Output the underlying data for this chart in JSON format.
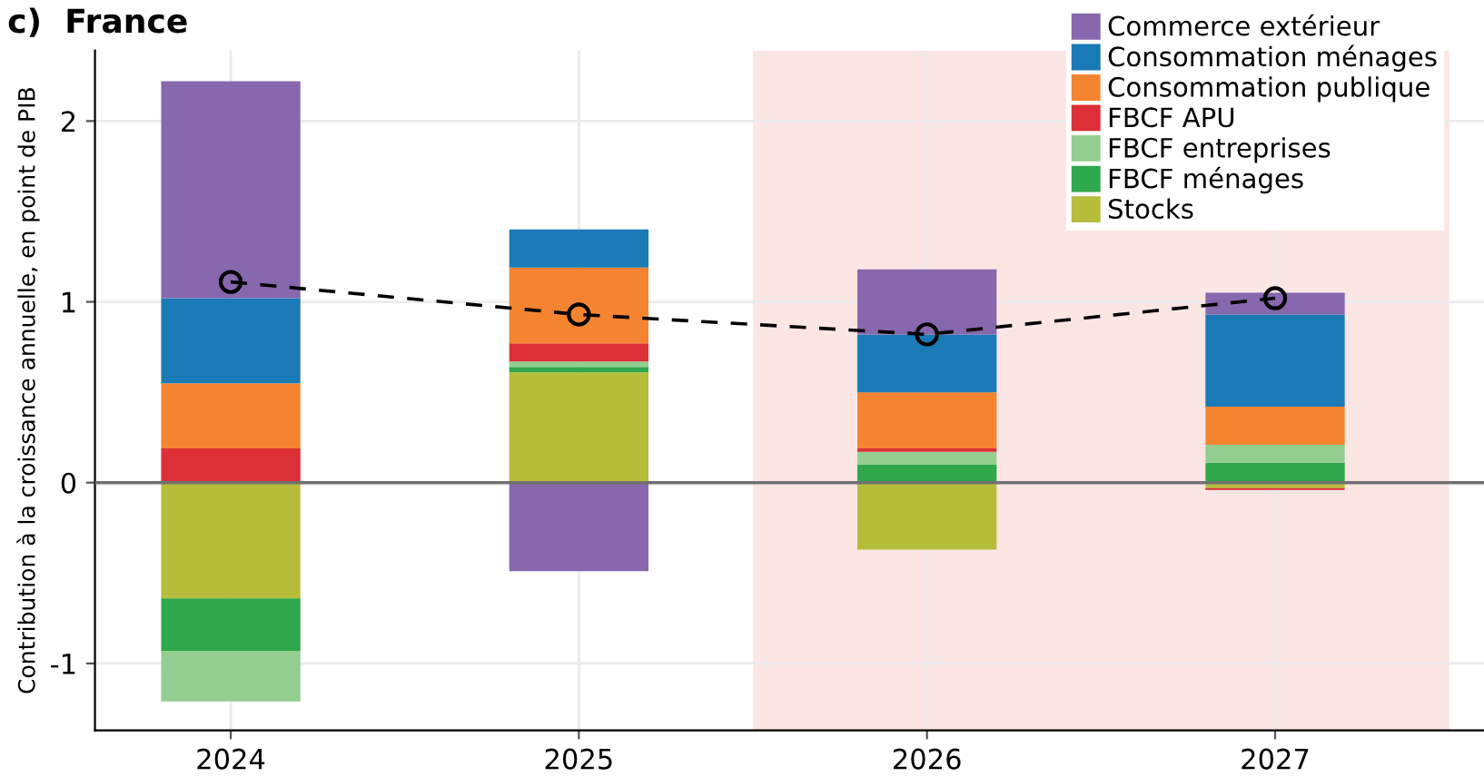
{
  "chart_data": {
    "type": "bar",
    "title": "c)  France",
    "ylabel": "Contribution à la croissance annuelle, en point de PIB",
    "x": [
      2024,
      2025,
      2026,
      2027
    ],
    "stacked": true,
    "series": [
      {
        "name": "Stocks",
        "color": "#b6bd3b",
        "values": [
          -0.64,
          0.61,
          -0.37,
          -0.03
        ]
      },
      {
        "name": "FBCF ménages",
        "color": "#2ea84a",
        "values": [
          -0.29,
          0.03,
          0.1,
          0.11
        ]
      },
      {
        "name": "FBCF entreprises",
        "color": "#93cd8f",
        "values": [
          -0.28,
          0.03,
          0.07,
          0.1
        ]
      },
      {
        "name": "FBCF APU",
        "color": "#dc2f36",
        "values": [
          0.19,
          0.1,
          0.02,
          -0.01
        ]
      },
      {
        "name": "Consommation publique",
        "color": "#f58431",
        "values": [
          0.36,
          0.42,
          0.31,
          0.21
        ]
      },
      {
        "name": "Consommation ménages",
        "color": "#1a7ab5",
        "values": [
          0.47,
          0.21,
          0.32,
          0.51
        ]
      },
      {
        "name": "Commerce extérieur",
        "color": "#8767ad",
        "values": [
          1.2,
          -0.49,
          0.36,
          0.12
        ]
      },
      {
        "type": "line",
        "color": "#000000",
        "values": [
          1.11,
          0.93,
          0.82,
          1.02
        ],
        "marker": "circle",
        "line_style": "dashed"
      }
    ],
    "xlim": [
      2023.61,
      2027.6
    ],
    "xticks": [
      2024,
      2025,
      2026,
      2027
    ],
    "ylim": [
      -1.37,
      2.39
    ],
    "yticks": [
      -1,
      0,
      1,
      2
    ],
    "ref_lines": [
      {
        "axis": "y",
        "value": 0,
        "color": "#707070"
      }
    ],
    "bands": [
      {
        "axis": "x",
        "from": 2025.5,
        "to": 2027.5,
        "color": "#fbe6e4"
      }
    ],
    "grid": true,
    "legend": "top right"
  }
}
